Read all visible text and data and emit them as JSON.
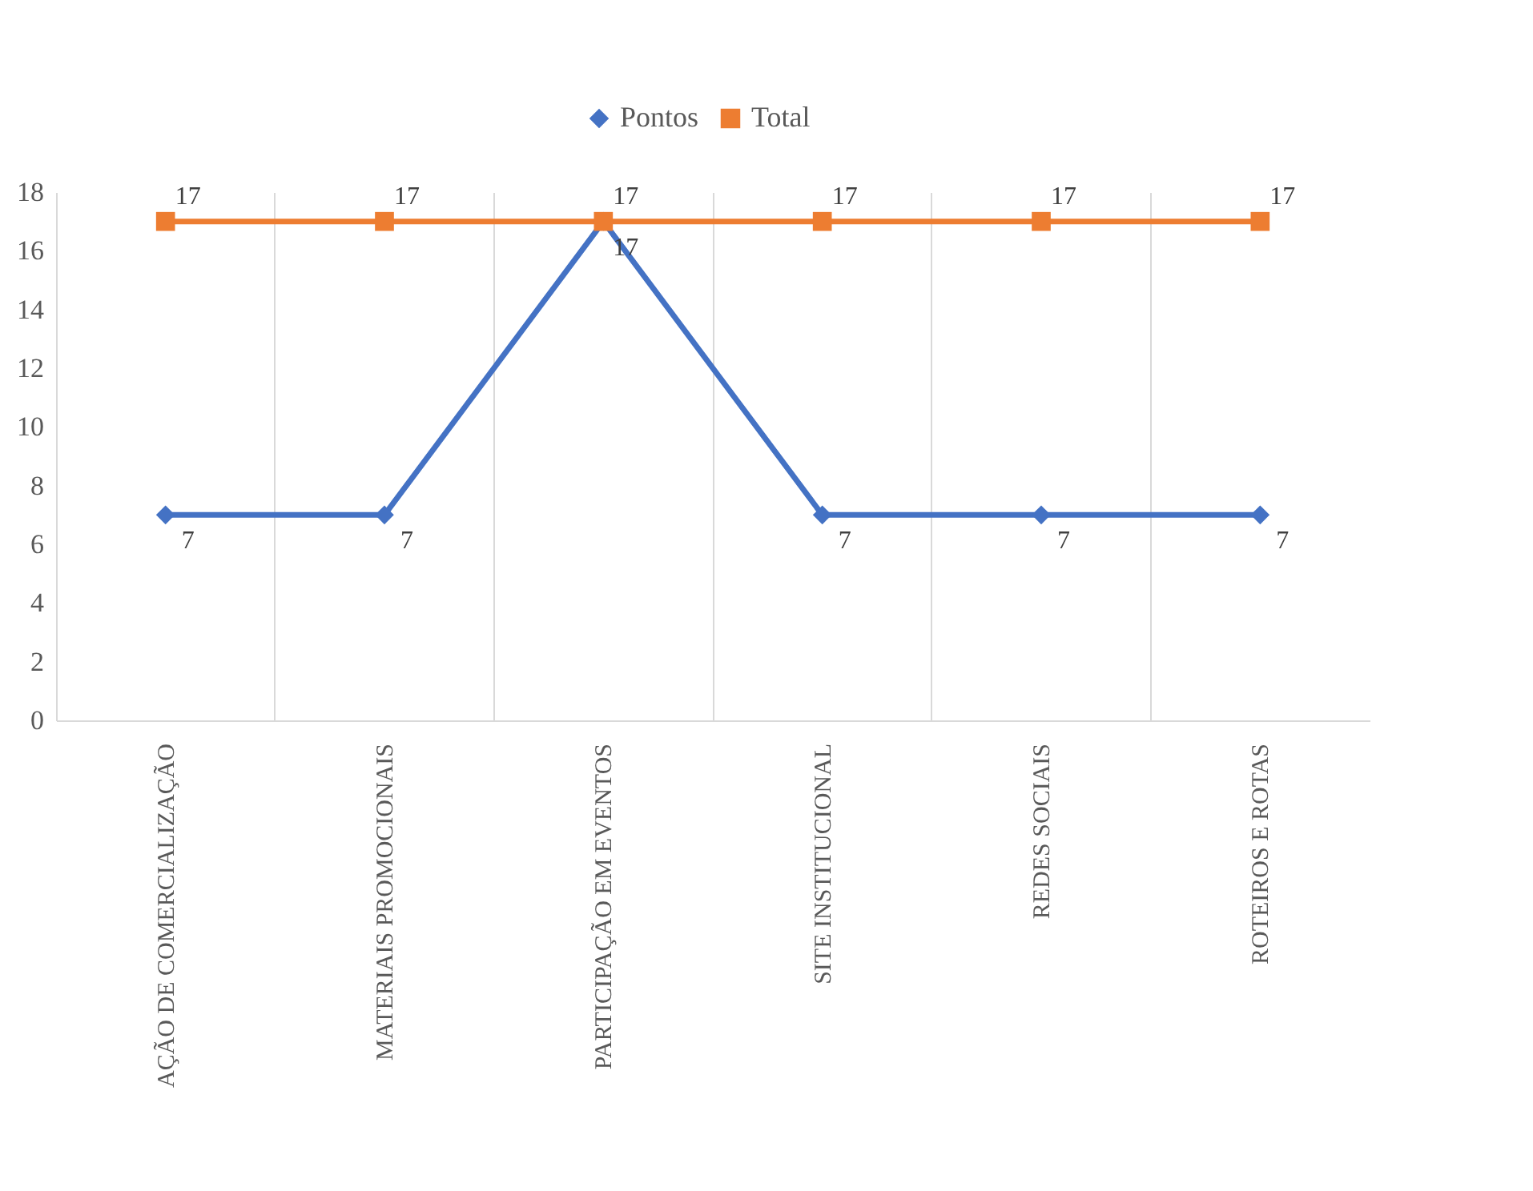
{
  "chart_data": {
    "type": "line",
    "categories": [
      "AÇÃO DE COMERCIALIZAÇÃO",
      "MATERIAIS PROMOCIONAIS",
      "PARTICIPAÇÃO EM EVENTOS",
      "SITE INSTITUCIONAL",
      "REDES SOCIAIS",
      "ROTEIROS E ROTAS"
    ],
    "series": [
      {
        "name": "Pontos",
        "color": "#4472c4",
        "marker": "diamond",
        "values": [
          7,
          7,
          17,
          7,
          7,
          7
        ]
      },
      {
        "name": "Total",
        "color": "#ed7d31",
        "marker": "square",
        "values": [
          17,
          17,
          17,
          17,
          17,
          17
        ]
      }
    ],
    "ylim": [
      0,
      18
    ],
    "yticks": [
      0,
      2,
      4,
      6,
      8,
      10,
      12,
      14,
      16,
      18
    ],
    "grid": "x",
    "legend": "top",
    "data_labels": true,
    "line_style": "solid"
  }
}
